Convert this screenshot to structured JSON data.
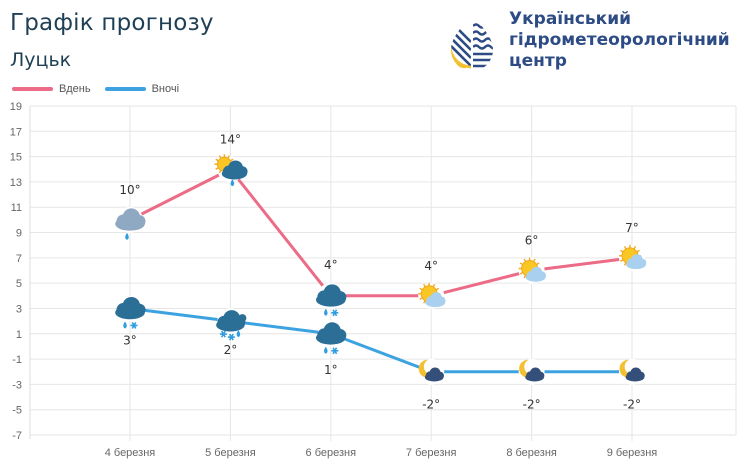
{
  "header": {
    "title": "Графік прогнозу",
    "city": "Луцьк"
  },
  "organization": {
    "name_line1": "Український",
    "name_line2": "гідрометеорологічний",
    "name_line3": "центр"
  },
  "chart_data": {
    "type": "line",
    "title": "Графік прогнозу",
    "subtitle": "Луцьк",
    "categories": [
      "4 березня",
      "5 березня",
      "6 березня",
      "7 березня",
      "8 березня",
      "9 березня"
    ],
    "series": [
      {
        "name": "Вдень",
        "color": "#ec6b86",
        "values": [
          10,
          14,
          4,
          4,
          6,
          7
        ],
        "labels": [
          "10°",
          "14°",
          "4°",
          "4°",
          "6°",
          "7°"
        ],
        "icons": [
          "rain-cloud-icon",
          "sun-cloud-rain-icon",
          "rain-snow-cloud-icon",
          "sun-cloud-icon",
          "sun-cloud-icon",
          "sun-cloud-icon"
        ]
      },
      {
        "name": "Вночі",
        "color": "#3ca3e0",
        "values": [
          3,
          2,
          1,
          -2,
          -2,
          -2
        ],
        "labels": [
          "3°",
          "2°",
          "1°",
          "-2°",
          "-2°",
          "-2°"
        ],
        "icons": [
          "rain-snow-cloud-icon",
          "snow-cloud-icon",
          "rain-snow-cloud-icon",
          "moon-cloud-icon",
          "moon-cloud-icon",
          "moon-cloud-icon"
        ]
      }
    ],
    "ylim": [
      -7,
      19
    ],
    "yticks": [
      19,
      17,
      15,
      13,
      11,
      9,
      7,
      5,
      3,
      1,
      -1,
      -3,
      -5,
      -7
    ],
    "xlabel": "",
    "ylabel": "",
    "grid": true,
    "legend": "top-left"
  }
}
